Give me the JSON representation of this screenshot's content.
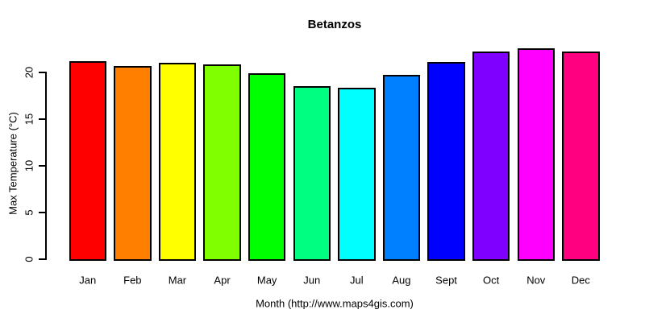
{
  "chart_data": {
    "type": "bar",
    "title": "Betanzos",
    "xlabel": "Month (http://www.maps4gis.com)",
    "ylabel": "Max Temperature (°C)",
    "categories": [
      "Jan",
      "Feb",
      "Mar",
      "Apr",
      "May",
      "Jun",
      "Jul",
      "Aug",
      "Sept",
      "Oct",
      "Nov",
      "Dec"
    ],
    "values": [
      21.2,
      20.7,
      21.0,
      20.8,
      19.9,
      18.5,
      18.3,
      19.7,
      21.1,
      22.2,
      22.6,
      22.2
    ],
    "bar_colors": [
      "#FF0000",
      "#FF8000",
      "#FFFF00",
      "#80FF00",
      "#00FF00",
      "#00FF80",
      "#00FFFF",
      "#0080FF",
      "#0000FF",
      "#8000FF",
      "#FF00FF",
      "#FF0080"
    ],
    "yticks": [
      0,
      5,
      10,
      15,
      20
    ],
    "ylim": [
      0,
      23
    ],
    "grid": false,
    "legend_position": "none",
    "axis_color": "#000000",
    "background_color": "#FFFFFF"
  }
}
